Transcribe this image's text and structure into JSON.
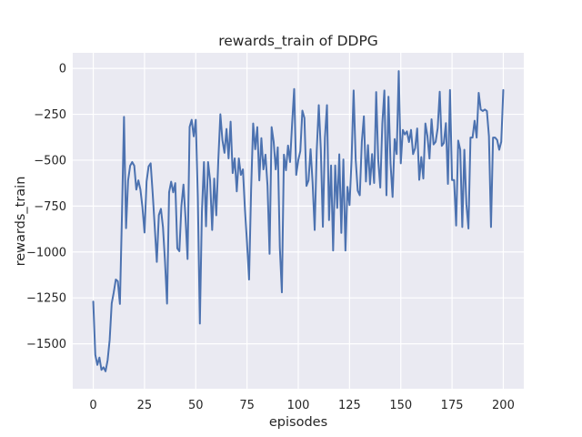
{
  "chart_data": {
    "type": "line",
    "title": "rewards_train of DDPG",
    "xlabel": "episodes",
    "ylabel": "rewards_train",
    "series_name": "rewards_train",
    "x_start": 0,
    "x_step": 1,
    "values": [
      -1270,
      -1560,
      -1615,
      -1575,
      -1642,
      -1628,
      -1650,
      -1590,
      -1480,
      -1280,
      -1220,
      -1150,
      -1160,
      -1283,
      -800,
      -264,
      -870,
      -610,
      -530,
      -510,
      -530,
      -660,
      -610,
      -660,
      -757,
      -894,
      -617,
      -534,
      -517,
      -683,
      -865,
      -1054,
      -799,
      -765,
      -864,
      -1052,
      -1281,
      -675,
      -617,
      -675,
      -625,
      -980,
      -996,
      -749,
      -633,
      -815,
      -1038,
      -319,
      -280,
      -370,
      -280,
      -700,
      -1390,
      -780,
      -510,
      -860,
      -510,
      -610,
      -880,
      -600,
      -800,
      -500,
      -250,
      -390,
      -460,
      -330,
      -490,
      -290,
      -570,
      -490,
      -670,
      -490,
      -580,
      -550,
      -770,
      -950,
      -1150,
      -660,
      -300,
      -440,
      -320,
      -610,
      -380,
      -550,
      -470,
      -640,
      -1010,
      -320,
      -400,
      -550,
      -430,
      -975,
      -1220,
      -470,
      -555,
      -420,
      -510,
      -300,
      -112,
      -580,
      -500,
      -450,
      -230,
      -270,
      -640,
      -610,
      -440,
      -625,
      -880,
      -450,
      -200,
      -443,
      -863,
      -377,
      -200,
      -826,
      -529,
      -992,
      -529,
      -760,
      -468,
      -896,
      -496,
      -992,
      -645,
      -744,
      -496,
      -120,
      -496,
      -666,
      -691,
      -400,
      -261,
      -616,
      -418,
      -632,
      -467,
      -624,
      -129,
      -500,
      -649,
      -300,
      -120,
      -691,
      -154,
      -517,
      -700,
      -385,
      -467,
      -15,
      -517,
      -335,
      -360,
      -343,
      -401,
      -335,
      -467,
      -434,
      -327,
      -607,
      -483,
      -600,
      -300,
      -369,
      -491,
      -277,
      -414,
      -400,
      -325,
      -127,
      -422,
      -406,
      -298,
      -629,
      -118,
      -608,
      -608,
      -856,
      -393,
      -443,
      -864,
      -443,
      -740,
      -872,
      -377,
      -377,
      -285,
      -377,
      -133,
      -224,
      -232,
      -224,
      -232,
      -369,
      -864,
      -377,
      -377,
      -390,
      -443,
      -400,
      -118
    ],
    "xticks": [
      0,
      25,
      50,
      75,
      100,
      125,
      150,
      175,
      200
    ],
    "yticks": [
      0,
      -250,
      -500,
      -750,
      -1000,
      -1250,
      -1500
    ],
    "xlim": [
      -10,
      210
    ],
    "ylim": [
      -1745,
      85
    ],
    "grid": true,
    "legend": false,
    "colors": {
      "line": "#4c72b0",
      "axes_background": "#eaeaf2",
      "grid": "#ffffff",
      "figure_background": "#ffffff",
      "text": "#262626"
    }
  }
}
